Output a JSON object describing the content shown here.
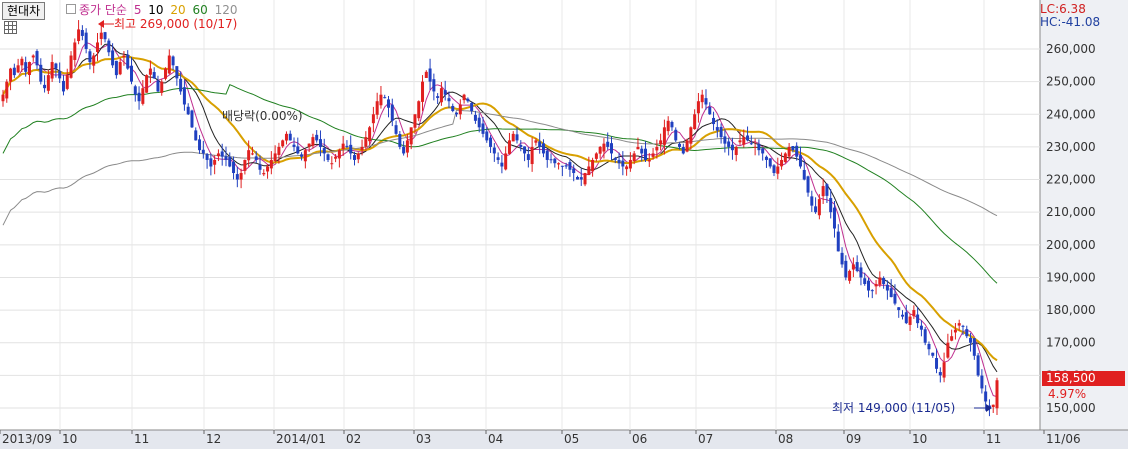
{
  "header": {
    "stock_name": "현대차",
    "legend": {
      "prefix": "종가 단순",
      "ma": [
        {
          "label": "5",
          "color": "#c03090"
        },
        {
          "label": "10",
          "color": "#000000"
        },
        {
          "label": "20",
          "color": "#d8a000"
        },
        {
          "label": "60",
          "color": "#208020"
        },
        {
          "label": "120",
          "color": "#909090"
        }
      ]
    },
    "lc": "LC:6.38",
    "hc": "HC:-41.08"
  },
  "annotations": {
    "high": "최고 269,000 (10/17)",
    "low": "최저 149,000 (11/05)",
    "dividend": "배당락(0.00%)",
    "current_price": "158,500",
    "current_change": "4.97%"
  },
  "colors": {
    "up": "#e02020",
    "down": "#2040c0",
    "grid": "#dcdcdc",
    "axis_bg": "#e8eaf0"
  },
  "chart_data": {
    "type": "candlestick",
    "ylim": [
      145000,
      272000
    ],
    "yticks": [
      150000,
      160000,
      170000,
      180000,
      190000,
      200000,
      210000,
      220000,
      230000,
      240000,
      250000,
      260000
    ],
    "ytick_labels": [
      "150,000",
      "160,000",
      "170,000",
      "180,000",
      "190,000",
      "200,000",
      "210,000",
      "220,000",
      "230,000",
      "240,000",
      "250,000",
      "260,000"
    ],
    "xtick_labels": [
      "2013/09",
      "10",
      "11",
      "12",
      "2014/01",
      "02",
      "03",
      "04",
      "05",
      "06",
      "07",
      "08",
      "09",
      "10",
      "11",
      "11/06"
    ],
    "closes": [
      246000,
      250000,
      254000,
      252000,
      255000,
      257000,
      253000,
      256000,
      258000,
      255000,
      250000,
      248000,
      252000,
      256000,
      254000,
      251000,
      247000,
      252000,
      258000,
      262000,
      266000,
      264000,
      260000,
      256000,
      258000,
      262000,
      265000,
      263000,
      259000,
      255000,
      252000,
      256000,
      258000,
      254000,
      250000,
      246000,
      244000,
      248000,
      252000,
      254000,
      251000,
      247000,
      250000,
      254000,
      258000,
      255000,
      251000,
      247000,
      243000,
      240000,
      236000,
      232000,
      229000,
      228000,
      226000,
      224000,
      226000,
      228000,
      227000,
      226000,
      224000,
      222000,
      220000,
      222000,
      226000,
      229000,
      228000,
      226000,
      223000,
      222000,
      224000,
      226000,
      228000,
      230000,
      232000,
      234000,
      232000,
      230000,
      228000,
      227000,
      229000,
      231000,
      233000,
      232000,
      230000,
      228000,
      226000,
      225000,
      227000,
      229000,
      231000,
      230000,
      228000,
      226000,
      228000,
      230000,
      233000,
      236000,
      240000,
      244000,
      246000,
      245000,
      242000,
      238000,
      234000,
      230000,
      228000,
      232000,
      236000,
      240000,
      244000,
      250000,
      253000,
      250000,
      247000,
      245000,
      248000,
      246000,
      244000,
      241000,
      240000,
      243000,
      246000,
      244000,
      241000,
      238000,
      236000,
      234000,
      232000,
      230000,
      228000,
      226000,
      224000,
      228000,
      232000,
      234000,
      232000,
      230000,
      228000,
      226000,
      230000,
      232000,
      230000,
      228000,
      226000,
      226000,
      225000,
      225000,
      224000,
      224000,
      223000,
      222000,
      220000,
      220000,
      222000,
      224000,
      226000,
      228000,
      230000,
      231000,
      230000,
      228000,
      226000,
      225000,
      224000,
      224000,
      226000,
      228000,
      230000,
      228000,
      226000,
      226000,
      228000,
      230000,
      232000,
      236000,
      238000,
      236000,
      232000,
      230000,
      228000,
      232000,
      236000,
      240000,
      244000,
      246000,
      243000,
      240000,
      237000,
      235000,
      233000,
      231000,
      230000,
      229000,
      230000,
      232000,
      233000,
      232000,
      231000,
      230000,
      229000,
      228000,
      226000,
      224000,
      222000,
      224000,
      226000,
      228000,
      230000,
      229000,
      227000,
      224000,
      220000,
      216000,
      212000,
      210000,
      214000,
      218000,
      215000,
      210000,
      205000,
      198000,
      194000,
      190000,
      192000,
      194000,
      192000,
      190000,
      188000,
      186000,
      186000,
      188000,
      190000,
      188000,
      186000,
      184000,
      182000,
      180000,
      178000,
      176000,
      178000,
      180000,
      176000,
      174000,
      170000,
      168000,
      166000,
      162000,
      160000,
      164000,
      170000,
      172000,
      174000,
      176000,
      175000,
      172000,
      170000,
      166000,
      160000,
      156000,
      152000,
      150000,
      151000,
      158500
    ]
  }
}
